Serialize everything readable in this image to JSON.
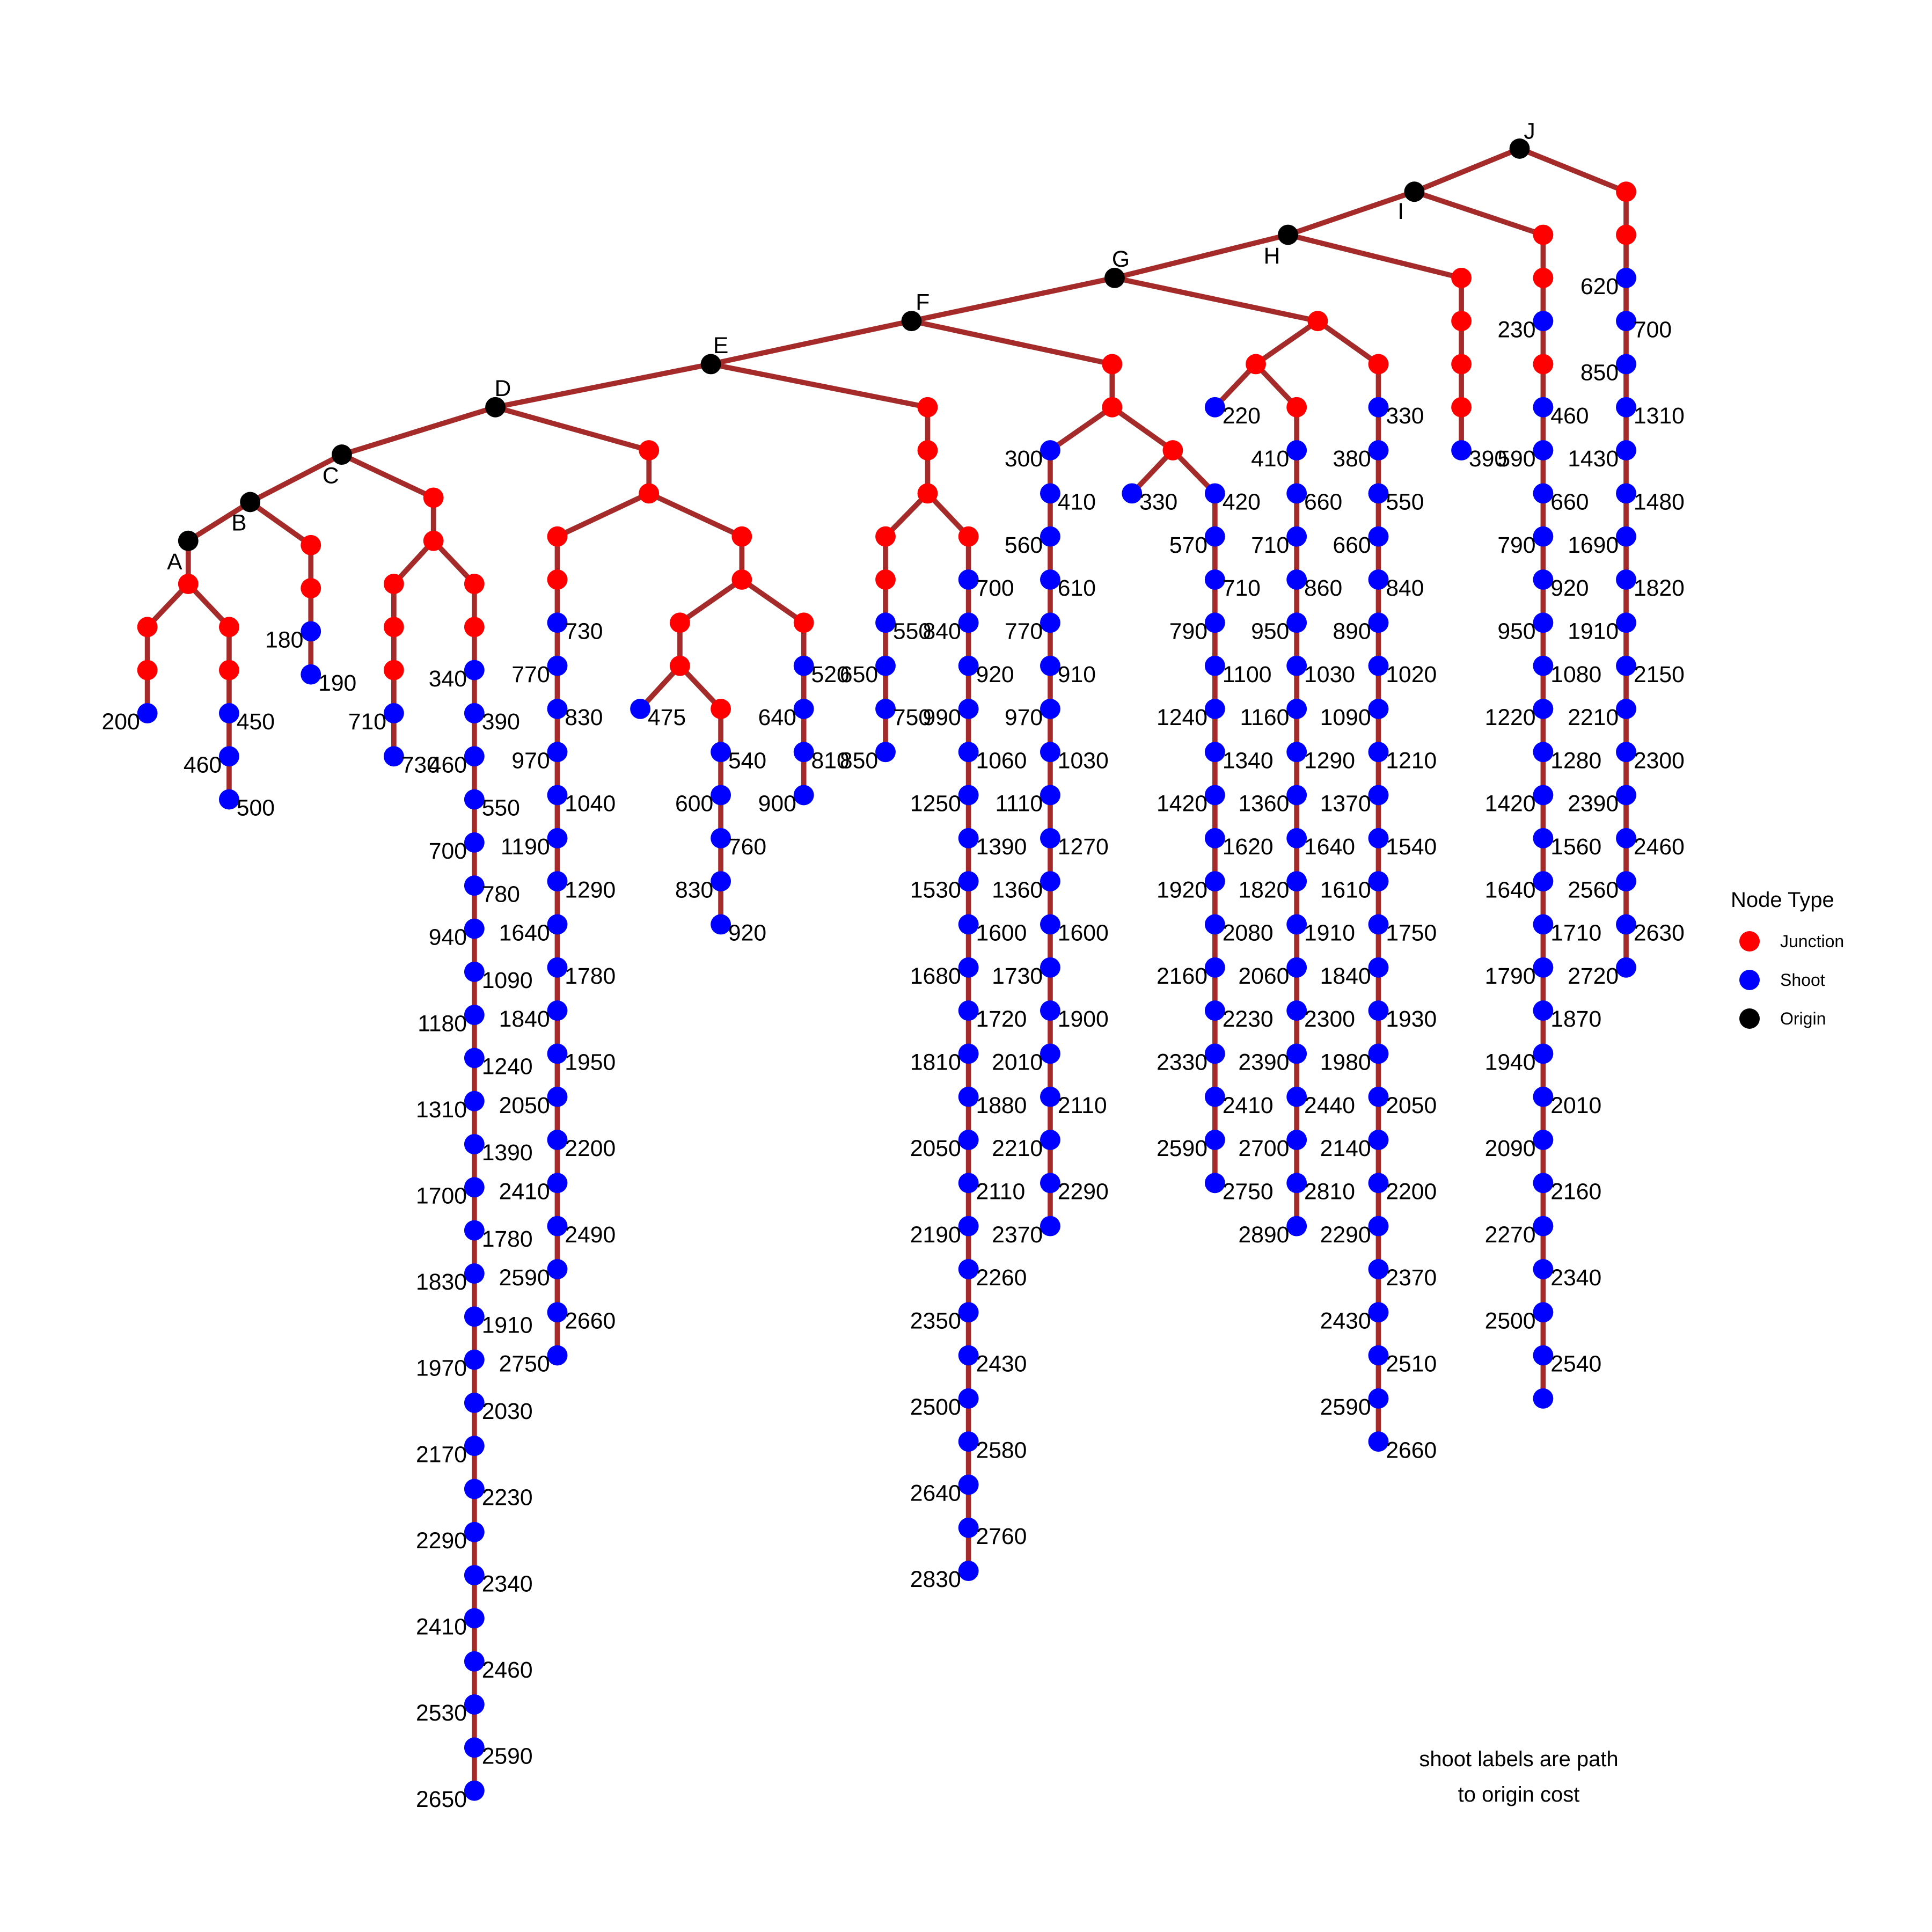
{
  "colors": {
    "edge": "#a52a2a",
    "junction": "#ff0000",
    "shoot": "#0000ff",
    "origin": "#000000"
  },
  "legend": {
    "title": "Node Type",
    "items": [
      {
        "label": "Junction",
        "color": "#ff0000"
      },
      {
        "label": "Shoot",
        "color": "#0000ff"
      },
      {
        "label": "Origin",
        "color": "#000000"
      }
    ]
  },
  "caption": {
    "line1": "shoot labels are path",
    "line2": "to origin cost"
  },
  "origins": [
    "A",
    "B",
    "C",
    "D",
    "E",
    "F",
    "G",
    "H",
    "I",
    "J"
  ],
  "shoot_costs": {
    "branch_A_left": [
      "200"
    ],
    "branch_A_right": [
      "450",
      "460",
      "500"
    ],
    "branch_B": [
      "180",
      "190"
    ],
    "branch_C_left": [
      "710",
      "730"
    ],
    "branch_C_right": [
      "340",
      "390",
      "460",
      "550",
      "700",
      "780",
      "940",
      "1090",
      "1180",
      "1240",
      "1310",
      "1390",
      "1700",
      "1780",
      "1830",
      "1910",
      "1970",
      "2030",
      "2170",
      "2230",
      "2290",
      "2340",
      "2410",
      "2460",
      "2530",
      "2590",
      "2650"
    ],
    "branch_D_left": [
      "730",
      "770",
      "830",
      "970",
      "1040",
      "1190",
      "1290",
      "1640",
      "1780",
      "1840",
      "1950",
      "2050",
      "2200",
      "2410",
      "2490",
      "2590",
      "2660",
      "2750"
    ],
    "branch_D_mid_a": [
      "475"
    ],
    "branch_D_mid_b": [
      "540",
      "600",
      "760",
      "830",
      "920"
    ],
    "branch_D_right": [
      "520",
      "640",
      "810",
      "900"
    ],
    "branch_E_left": [
      "550",
      "650",
      "750",
      "850"
    ],
    "branch_E_right": [
      "700",
      "840",
      "920",
      "990",
      "1060",
      "1250",
      "1390",
      "1530",
      "1600",
      "1680",
      "1720",
      "1810",
      "1880",
      "2050",
      "2110",
      "2190",
      "2260",
      "2350",
      "2430",
      "2500",
      "2580",
      "2640",
      "2760",
      "2830"
    ],
    "branch_F_left": [
      "300",
      "410",
      "560",
      "610",
      "770",
      "910",
      "970",
      "1030",
      "1110",
      "1270",
      "1360",
      "1600",
      "1730",
      "1900",
      "2010",
      "2110",
      "2210",
      "2290",
      "2370"
    ],
    "branch_F_mid": [
      "330"
    ],
    "branch_F_right": [
      "420",
      "570",
      "710",
      "790",
      "1100",
      "1240",
      "1340",
      "1420",
      "1620",
      "1920",
      "2080",
      "2160",
      "2230",
      "2330",
      "2410",
      "2590",
      "2750"
    ],
    "branch_G_a": [
      "220"
    ],
    "branch_G_b": [
      "410",
      "660",
      "710",
      "860",
      "950",
      "1030",
      "1160",
      "1290",
      "1360",
      "1640",
      "1820",
      "1910",
      "2060",
      "2300",
      "2390",
      "2440",
      "2700",
      "2810",
      "2890"
    ],
    "branch_G_c": [
      "330",
      "380",
      "550",
      "660",
      "840",
      "890",
      "1020",
      "1090",
      "1210",
      "1370",
      "1540",
      "1610",
      "1750",
      "1840",
      "1930",
      "1980",
      "2050",
      "2140",
      "2200",
      "2290",
      "2370",
      "2430",
      "2510",
      "2590",
      "2660"
    ],
    "branch_H": [
      "390"
    ],
    "branch_I": [
      "230",
      "460",
      "590",
      "660",
      "790",
      "920",
      "950",
      "1080",
      "1220",
      "1280",
      "1420",
      "1560",
      "1640",
      "1710",
      "1790",
      "1870",
      "1940",
      "2010",
      "2090",
      "2160",
      "2270",
      "2340",
      "2500",
      "2540"
    ],
    "branch_J": [
      "620",
      "700",
      "850",
      "1310",
      "1430",
      "1480",
      "1690",
      "1820",
      "1910",
      "2150",
      "2210",
      "2300",
      "2390",
      "2460",
      "2560",
      "2630",
      "2720"
    ]
  }
}
